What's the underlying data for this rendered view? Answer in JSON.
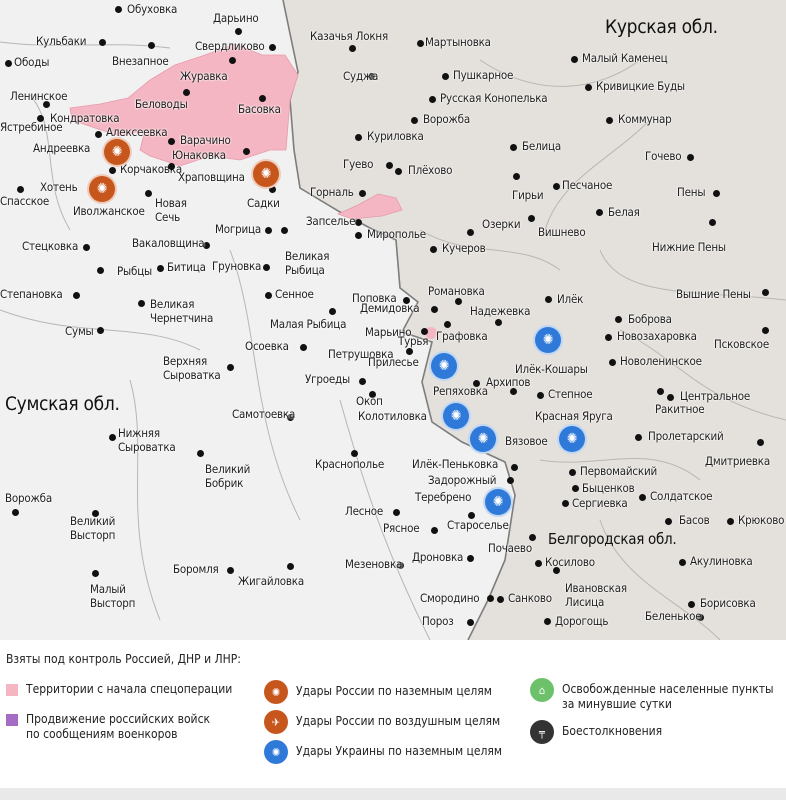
{
  "colors": {
    "ukraine_land": "#f1f1f1",
    "russia_land": "#e4e0db",
    "controlled": "#f4b6c2",
    "advance": "#a66bc4",
    "russia_strike": "#c7561c",
    "ukraine_strike": "#2f7ad8",
    "liberated": "#6cc16a",
    "clash": "#333333",
    "border": "#7d7d7d"
  },
  "regions": [
    {
      "label": "Курская обл."
    },
    {
      "label": "Сумская обл."
    },
    {
      "label": "Белгородская обл."
    }
  ],
  "towns": [
    "Обуховка",
    "Дарьино",
    "Кульбаки",
    "Ободы",
    "Внезапное",
    "Свердликово",
    "Казачья Локня",
    "Мартыновка",
    "Малый Каменец",
    "Журавка",
    "Суджа",
    "Пушкарное",
    "Кривицкие Буды",
    "Ленинское",
    "Беловоды",
    "Басовка",
    "Русская Конопелька",
    "Кондратовка",
    "Ястребиное",
    "Алексеевка",
    "Варачино",
    "Ворожба",
    "Коммунар",
    "Андреевка",
    "Юнаковка",
    "Куриловка",
    "Белица",
    "Гочево",
    "Корчаковка",
    "Храповщина",
    "Гуево",
    "Плёхово",
    "Хотень",
    "Песчаное",
    "Пены",
    "Спасское",
    "Иволжанское",
    "Новая\nСечь",
    "Садки",
    "Горналь",
    "Гирьи",
    "Белая",
    "Запселье",
    "Озерки",
    "Вишнево",
    "Нижние Пены",
    "Стецковка",
    "Вакаловщина",
    "Могрица",
    "Великая\nРыбица",
    "Мирополье",
    "Кучеров",
    "Рыбцы",
    "Битица",
    "Груновка",
    "Степановка",
    "Сенное",
    "Поповка",
    "Романовка",
    "Илёк",
    "Вышние Пены",
    "Великая\nЧернетчина",
    "Демидовка",
    "Надежевка",
    "Боброва",
    "Малая Рыбица",
    "Марьино",
    "Новозахаровка",
    "Сумы",
    "Графовка",
    "Турья",
    "Псковское",
    "Осоевка",
    "Петрушовка",
    "Прилесье",
    "Илёк-Кошары",
    "Новоленинское",
    "Верхняя\nСыроватка",
    "Угроеды",
    "Архипов",
    "Репяховка",
    "Степное",
    "Центральное",
    "Окоп",
    "Ракитное",
    "Самотоевка",
    "Колотиловка",
    "Красная Яруга",
    "Вязовое",
    "Пролетарский",
    "Нижняя\nСыроватка",
    "Великий\nБобрик",
    "Краснополье",
    "Илёк-Пеньковка",
    "Дмитриевка",
    "Первомайский",
    "Задорожный",
    "Быценков",
    "Ворожба",
    "Солдатское",
    "Теребрено",
    "Сергиевка",
    "Великий\nВысторп",
    "Лесное",
    "Басов",
    "Крюково",
    "Старосельe",
    "Рясное",
    "Почаево",
    "Дроновка",
    "Мезеновка",
    "Косилово",
    "Акулиновка",
    "Боромля",
    "Жигайловка",
    "Малый\nВысторп",
    "Ивановская\nЛисица",
    "Смородино",
    "Санково",
    "Борисовка",
    "Беленькое",
    "Пороз",
    "Дорогощь"
  ],
  "markers": {
    "russia_ground_strikes": 3,
    "ukraine_ground_strikes": 6
  },
  "legend": {
    "title": "Взяты под контроль Россией, ДНР и ЛНР:",
    "items": [
      {
        "label": "Территории с начала спецоперации",
        "icon": "pink-square"
      },
      {
        "label": "Продвижение российских войск\nпо сообщениям военкоров",
        "icon": "purple-square"
      },
      {
        "label": "Удары России по наземным целям",
        "icon": "explosion-icon"
      },
      {
        "label": "Удары России по воздушным целям",
        "icon": "plane-strike-icon"
      },
      {
        "label": "Удары Украины по наземным целям",
        "icon": "explosion-icon"
      },
      {
        "label": "Освобожденные населенные пункты\nза минувшие сутки",
        "icon": "building-flag-icon"
      },
      {
        "label": "Боестолкновения",
        "icon": "rifle-icon"
      }
    ]
  }
}
